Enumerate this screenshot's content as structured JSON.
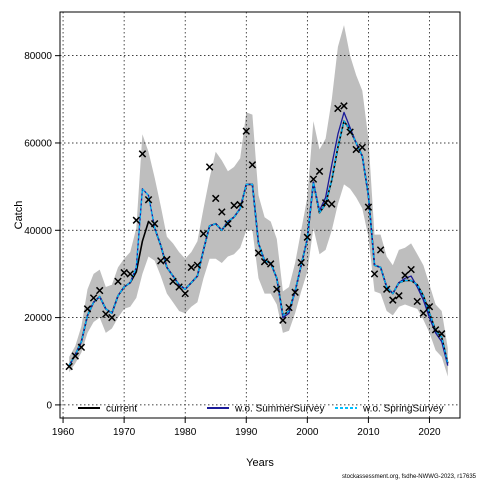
{
  "chart_data": {
    "type": "line",
    "xlabel": "Years",
    "ylabel": "Catch",
    "xlim": [
      1959.5,
      2025
    ],
    "ylim": [
      -3000,
      90000
    ],
    "x_ticks": [
      1960,
      1970,
      1980,
      1990,
      2000,
      2010,
      2020
    ],
    "y_ticks": [
      0,
      20000,
      40000,
      60000,
      80000
    ],
    "grid": true,
    "legend_position": "bottom",
    "footer": "stockassessment.org, fsdhe-NWWG-2023, r17635",
    "series": [
      {
        "name": "current",
        "style": "solid",
        "color": "#000000",
        "x": [
          1961,
          1962,
          1963,
          1964,
          1965,
          1966,
          1967,
          1968,
          1969,
          1970,
          1971,
          1972,
          1973,
          1974,
          1975,
          1976,
          1977,
          1978,
          1979,
          1980,
          1981,
          1982,
          1983,
          1984,
          1985,
          1986,
          1987,
          1988,
          1989,
          1990,
          1991,
          1992,
          1993,
          1994,
          1995,
          1996,
          1997,
          1998,
          1999,
          2000,
          2001,
          2002,
          2003,
          2004,
          2005,
          2006,
          2007,
          2008,
          2009,
          2010,
          2011,
          2012,
          2013,
          2014,
          2015,
          2016,
          2017,
          2018,
          2019,
          2020,
          2021,
          2022,
          2023
        ],
        "values": [
          9000,
          11500,
          14500,
          20500,
          23500,
          24800,
          22000,
          21000,
          25000,
          27000,
          28000,
          30500,
          37500,
          42000,
          40500,
          36500,
          31500,
          29500,
          27500,
          26500,
          28000,
          29500,
          35500,
          41000,
          41500,
          40000,
          42000,
          43000,
          45000,
          50500,
          50500,
          37000,
          33000,
          32500,
          29000,
          20500,
          21500,
          26000,
          32000,
          38000,
          51000,
          44000,
          46000,
          51500,
          59000,
          65000,
          63000,
          60000,
          57000,
          48000,
          32000,
          31500,
          27000,
          25500,
          28000,
          28500,
          28500,
          27500,
          25000,
          21000,
          17000,
          15500,
          9500
        ]
      },
      {
        "name": "w.o. SummerSurvey",
        "style": "solid",
        "color": "#1a1a99",
        "x": [
          1961,
          1962,
          1963,
          1964,
          1965,
          1966,
          1967,
          1968,
          1969,
          1970,
          1971,
          1972,
          1973,
          1974,
          1975,
          1976,
          1977,
          1978,
          1979,
          1980,
          1981,
          1982,
          1983,
          1984,
          1985,
          1986,
          1987,
          1988,
          1989,
          1990,
          1991,
          1992,
          1993,
          1994,
          1995,
          1996,
          1997,
          1998,
          1999,
          2000,
          2001,
          2002,
          2003,
          2004,
          2005,
          2006,
          2007,
          2008,
          2009,
          2010,
          2011,
          2012,
          2013,
          2014,
          2015,
          2016,
          2017,
          2018,
          2019,
          2020,
          2021,
          2022,
          2023
        ],
        "values": [
          9000,
          11500,
          14500,
          20500,
          23500,
          24800,
          22000,
          21000,
          25000,
          27000,
          28000,
          31500,
          49500,
          48000,
          40500,
          36500,
          31500,
          29500,
          27500,
          26500,
          28000,
          29500,
          35500,
          41000,
          41500,
          40000,
          42000,
          43000,
          45000,
          50500,
          50500,
          37000,
          33000,
          32500,
          29000,
          20000,
          21000,
          26000,
          32000,
          38000,
          51000,
          44500,
          47500,
          55000,
          62000,
          67000,
          63500,
          60000,
          57000,
          48000,
          32000,
          31500,
          27000,
          25500,
          28000,
          29000,
          29500,
          27000,
          24000,
          20000,
          16500,
          14500,
          9000
        ]
      },
      {
        "name": "w.o. SpringSurvey",
        "style": "dashed",
        "color": "#00bfff",
        "x": [
          1961,
          1962,
          1963,
          1964,
          1965,
          1966,
          1967,
          1968,
          1969,
          1970,
          1971,
          1972,
          1973,
          1974,
          1975,
          1976,
          1977,
          1978,
          1979,
          1980,
          1981,
          1982,
          1983,
          1984,
          1985,
          1986,
          1987,
          1988,
          1989,
          1990,
          1991,
          1992,
          1993,
          1994,
          1995,
          1996,
          1997,
          1998,
          1999,
          2000,
          2001,
          2002,
          2003,
          2004,
          2005,
          2006,
          2007,
          2008,
          2009,
          2010,
          2011,
          2012,
          2013,
          2014,
          2015,
          2016,
          2017,
          2018,
          2019,
          2020,
          2021,
          2022,
          2023
        ],
        "values": [
          9000,
          11500,
          14500,
          20500,
          23500,
          24800,
          22000,
          21000,
          25000,
          27000,
          28000,
          31500,
          49500,
          48000,
          40500,
          36500,
          31500,
          29500,
          27500,
          26500,
          28000,
          29500,
          35500,
          41000,
          41500,
          40000,
          42000,
          43000,
          45000,
          50500,
          50500,
          37000,
          33000,
          32500,
          29000,
          20500,
          21500,
          26000,
          32000,
          38000,
          51000,
          44000,
          46000,
          51500,
          59000,
          65000,
          63000,
          60000,
          57000,
          48000,
          32000,
          31500,
          27000,
          25500,
          28000,
          28500,
          28500,
          27500,
          25000,
          21000,
          17000,
          15500,
          9500
        ]
      }
    ],
    "confidence_band": {
      "color": "#bebebe",
      "x": [
        1961,
        1962,
        1963,
        1964,
        1965,
        1966,
        1967,
        1968,
        1969,
        1970,
        1971,
        1972,
        1973,
        1974,
        1975,
        1976,
        1977,
        1978,
        1979,
        1980,
        1981,
        1982,
        1983,
        1984,
        1985,
        1986,
        1987,
        1988,
        1989,
        1990,
        1991,
        1992,
        1993,
        1994,
        1995,
        1996,
        1997,
        1998,
        1999,
        2000,
        2001,
        2002,
        2003,
        2004,
        2005,
        2006,
        2007,
        2008,
        2009,
        2010,
        2011,
        2012,
        2013,
        2014,
        2015,
        2016,
        2017,
        2018,
        2019,
        2020,
        2021,
        2022,
        2023
      ],
      "lower": [
        7500,
        9500,
        12000,
        16500,
        19000,
        20000,
        16500,
        17500,
        20000,
        22000,
        22500,
        24500,
        30000,
        34000,
        33000,
        29500,
        25500,
        23500,
        21500,
        21000,
        22500,
        23500,
        29000,
        33500,
        33500,
        32500,
        34000,
        34500,
        36000,
        40000,
        40000,
        29000,
        25500,
        25500,
        23000,
        16500,
        17000,
        21000,
        26000,
        30500,
        40500,
        34500,
        35500,
        40000,
        46000,
        50500,
        49500,
        47500,
        45000,
        38500,
        26000,
        25500,
        21500,
        20500,
        22500,
        23000,
        22500,
        22000,
        19500,
        16500,
        12500,
        11000,
        6500
      ],
      "upper": [
        11000,
        13500,
        18000,
        26500,
        30000,
        31000,
        27000,
        27500,
        31500,
        33500,
        35000,
        40500,
        62000,
        58000,
        52000,
        45500,
        38500,
        37000,
        35000,
        33500,
        35000,
        37500,
        45000,
        52000,
        58000,
        56000,
        53500,
        54500,
        56500,
        67000,
        66500,
        48000,
        43000,
        42000,
        38000,
        26000,
        27000,
        32500,
        40000,
        47500,
        65000,
        58500,
        61000,
        70000,
        82000,
        87000,
        80000,
        75500,
        72000,
        61000,
        39000,
        39000,
        34000,
        32000,
        35500,
        36000,
        37000,
        34500,
        32000,
        27500,
        23000,
        21500,
        13000
      ]
    },
    "observations": {
      "marker": "x",
      "x": [
        1961,
        1962,
        1963,
        1964,
        1965,
        1966,
        1967,
        1968,
        1969,
        1970,
        1971,
        1972,
        1973,
        1974,
        1975,
        1976,
        1977,
        1978,
        1979,
        1980,
        1981,
        1982,
        1983,
        1984,
        1985,
        1986,
        1987,
        1988,
        1989,
        1990,
        1991,
        1992,
        1993,
        1994,
        1995,
        1996,
        1997,
        1998,
        1999,
        2000,
        2001,
        2002,
        2003,
        2004,
        2005,
        2006,
        2007,
        2008,
        2009,
        2010,
        2011,
        2012,
        2013,
        2014,
        2015,
        2016,
        2017,
        2018,
        2019,
        2020,
        2021,
        2022
      ],
      "values": [
        8800,
        11200,
        13200,
        22000,
        24500,
        26200,
        20800,
        20000,
        28300,
        30300,
        30000,
        42300,
        57500,
        47000,
        41500,
        33000,
        33300,
        28300,
        27000,
        25500,
        31500,
        32000,
        39200,
        54500,
        47300,
        44200,
        41500,
        45700,
        45900,
        62700,
        55000,
        34800,
        32800,
        32300,
        26500,
        19400,
        22300,
        25800,
        32600,
        38400,
        51700,
        53500,
        46300,
        46000,
        67900,
        68500,
        62500,
        58500,
        59000,
        45300,
        30000,
        35500,
        26500,
        24000,
        25000,
        29700,
        31000,
        23700,
        21000,
        22500,
        17200,
        16300
      ]
    }
  }
}
